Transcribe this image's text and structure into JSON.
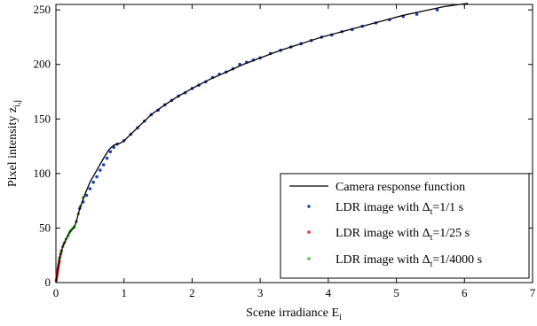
{
  "chart_data": {
    "type": "scatter",
    "xlabel": "Scene irradiance E",
    "xlabel_sub": "i",
    "ylabel": "Pixel intensity z",
    "ylabel_sub": "i,j",
    "xlim": [
      0,
      7
    ],
    "ylim": [
      0,
      255
    ],
    "xticks": [
      0,
      1,
      2,
      3,
      4,
      5,
      6,
      7
    ],
    "yticks": [
      0,
      50,
      100,
      150,
      200,
      250
    ],
    "grid": false,
    "legend_position": "bottom-right",
    "colors": {
      "curve": "#000000",
      "ldr_1": "#1f3fbf",
      "ldr_25": "#e03030",
      "ldr_4000": "#4fbf3f"
    },
    "response_curve": {
      "name": "Camera response function",
      "x": [
        0,
        0.01,
        0.03,
        0.06,
        0.1,
        0.15,
        0.2,
        0.27,
        0.3,
        0.35,
        0.42,
        0.5,
        0.6,
        0.7,
        0.78,
        0.85,
        0.9,
        0.95,
        1.0,
        1.1,
        1.25,
        1.4,
        1.6,
        1.8,
        2.0,
        2.25,
        2.5,
        2.75,
        3.0,
        3.3,
        3.6,
        3.9,
        4.2,
        4.5,
        4.8,
        5.1,
        5.4,
        5.7,
        6.05
      ],
      "y": [
        0,
        6,
        14,
        24,
        33,
        40,
        46,
        51,
        56,
        68,
        80,
        92,
        103,
        114,
        122,
        126,
        127,
        128,
        130,
        136,
        145,
        154,
        163,
        171,
        178,
        186,
        193,
        200,
        206,
        213,
        219,
        225,
        230,
        235,
        240,
        245,
        249,
        253,
        256
      ]
    },
    "series": [
      {
        "name_prefix": "LDR image with Δ",
        "name_sub": "t",
        "name_suffix": "=1/1 s",
        "x": [
          0.3,
          0.35,
          0.4,
          0.45,
          0.5,
          0.55,
          0.6,
          0.65,
          0.7,
          0.75,
          0.8,
          0.85,
          0.9,
          1.0,
          1.1,
          1.2,
          1.3,
          1.4,
          1.5,
          1.6,
          1.7,
          1.8,
          1.9,
          2.0,
          2.1,
          2.2,
          2.3,
          2.4,
          2.5,
          2.6,
          2.7,
          2.8,
          2.9,
          3.0,
          3.15,
          3.3,
          3.45,
          3.6,
          3.75,
          3.9,
          4.05,
          4.2,
          4.35,
          4.5,
          4.7,
          4.9,
          5.1,
          5.3,
          5.6
        ],
        "y": [
          56,
          68,
          74,
          80,
          86,
          92,
          97,
          103,
          108,
          114,
          120,
          124,
          127,
          130,
          136,
          142,
          148,
          154,
          158,
          163,
          167,
          171,
          174,
          178,
          181,
          184,
          188,
          191,
          193,
          196,
          200,
          202,
          204,
          206,
          210,
          213,
          216,
          219,
          222,
          225,
          227,
          230,
          232,
          235,
          238,
          241,
          244,
          246,
          250
        ]
      },
      {
        "name_prefix": "LDR image with Δ",
        "name_sub": "t",
        "name_suffix": "=1/25 s",
        "x": [
          0.005,
          0.01,
          0.015,
          0.02,
          0.025,
          0.03,
          0.035,
          0.04,
          0.045,
          0.05,
          0.06,
          0.07,
          0.08,
          0.1,
          0.12
        ],
        "y": [
          2,
          4,
          6,
          8,
          10,
          12,
          14,
          16,
          18,
          20,
          23,
          26,
          29,
          33,
          36
        ]
      },
      {
        "name_prefix": "LDR image with Δ",
        "name_sub": "t",
        "name_suffix": "=1/4000 s",
        "x": [
          0.05,
          0.08,
          0.1,
          0.13,
          0.15,
          0.18,
          0.2,
          0.22,
          0.25,
          0.27,
          0.3,
          0.33,
          0.36,
          0.4
        ],
        "y": [
          22,
          28,
          33,
          37,
          40,
          43,
          46,
          48,
          50,
          51,
          56,
          63,
          70,
          78
        ]
      }
    ]
  }
}
